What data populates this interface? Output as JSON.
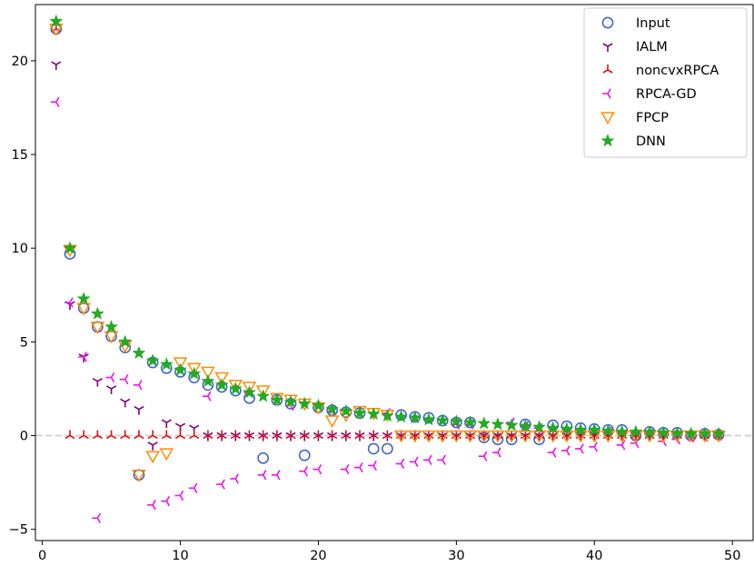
{
  "chart_data": {
    "type": "scatter",
    "title": "",
    "xlabel": "",
    "ylabel": "",
    "xlim": [
      -0.5,
      51.5
    ],
    "ylim": [
      -5.6,
      23
    ],
    "xticks": [
      0,
      10,
      20,
      30,
      40,
      50
    ],
    "xtick_labels": [
      "0",
      "10",
      "20",
      "30",
      "40",
      "50"
    ],
    "yticks": [
      -5,
      0,
      5,
      10,
      15,
      20
    ],
    "ytick_labels": [
      "−5",
      "0",
      "5",
      "10",
      "15",
      "20"
    ],
    "reference_line": {
      "y": 0,
      "style": "dashed",
      "color": "#cccccc"
    },
    "legend_position": "top-right",
    "series": [
      {
        "name": "Input",
        "marker": "open-circle",
        "color": "#3a5fcd",
        "x": [
          1,
          2,
          3,
          4,
          5,
          6,
          7,
          8,
          9,
          10,
          11,
          12,
          13,
          14,
          15,
          16,
          17,
          18,
          19,
          20,
          21,
          22,
          23,
          24,
          25,
          26,
          27,
          28,
          29,
          30,
          31,
          32,
          33,
          34,
          35,
          36,
          37,
          38,
          39,
          40,
          41,
          42,
          43,
          44,
          45,
          46,
          47,
          48,
          49
        ],
        "y": [
          21.7,
          9.7,
          6.8,
          5.8,
          5.3,
          4.7,
          -2.1,
          3.9,
          3.6,
          3.4,
          3.1,
          2.7,
          2.6,
          2.4,
          2.0,
          -1.2,
          1.9,
          1.7,
          -1.05,
          1.5,
          1.35,
          1.25,
          1.2,
          -0.7,
          -0.7,
          1.1,
          1.0,
          0.95,
          0.8,
          0.7,
          0.7,
          -0.1,
          -0.2,
          -0.2,
          0.6,
          -0.2,
          0.55,
          0.5,
          0.4,
          0.35,
          0.3,
          0.3,
          0.0,
          0.2,
          0.15,
          0.15,
          0.0,
          0.1,
          0.05
        ]
      },
      {
        "name": "IALM",
        "marker": "tri-down",
        "color": "#800080",
        "x": [
          1,
          2,
          3,
          4,
          5,
          6,
          7,
          8,
          9,
          10,
          11,
          12,
          13,
          14,
          15,
          16,
          17,
          18,
          19,
          20,
          21,
          22,
          23,
          24,
          25,
          26,
          27,
          28,
          29,
          30,
          31,
          32,
          33,
          34,
          35,
          36,
          37,
          38,
          39,
          40,
          41,
          42,
          43,
          44,
          45,
          46,
          47,
          48,
          49
        ],
        "y": [
          19.8,
          7.0,
          4.2,
          2.9,
          2.5,
          1.8,
          1.4,
          -0.5,
          0.7,
          0.5,
          0.4,
          0,
          0,
          0,
          0,
          0,
          0,
          0,
          0,
          0,
          0,
          0,
          0,
          0,
          0,
          0,
          0,
          0,
          0,
          0,
          0,
          0,
          0,
          0,
          0,
          0,
          0,
          0,
          0,
          0,
          0,
          0,
          0,
          0,
          0,
          0,
          0,
          0,
          0
        ]
      },
      {
        "name": "noncvxRPCA",
        "marker": "tri-up",
        "color": "#dd1111",
        "x": [
          1,
          2,
          3,
          4,
          5,
          6,
          7,
          8,
          9,
          10,
          11,
          12,
          13,
          14,
          15,
          16,
          17,
          18,
          19,
          20,
          21,
          22,
          23,
          24,
          25,
          26,
          27,
          28,
          29,
          30,
          31,
          32,
          33,
          34,
          35,
          36,
          37,
          38,
          39,
          40,
          41,
          42,
          43,
          44,
          45,
          46,
          47,
          48,
          49
        ],
        "y": [
          21.7,
          0,
          0,
          0,
          0,
          0,
          0,
          0,
          0,
          0,
          0,
          0,
          0,
          0,
          0,
          0,
          0,
          0,
          0,
          0,
          0,
          0,
          0,
          0,
          0,
          0,
          0,
          0,
          0,
          0,
          0,
          0,
          0,
          0,
          0,
          0,
          0,
          0,
          0,
          0,
          0,
          0,
          0,
          0,
          0,
          0,
          0,
          0,
          0
        ]
      },
      {
        "name": "RPCA-GD",
        "marker": "tri-left",
        "color": "#ee11ee",
        "x": [
          1,
          2,
          3,
          4,
          5,
          6,
          7,
          8,
          9,
          10,
          11,
          12,
          13,
          14,
          15,
          16,
          17,
          18,
          19,
          20,
          21,
          22,
          23,
          24,
          25,
          26,
          27,
          28,
          29,
          30,
          31,
          32,
          33,
          34,
          35,
          36,
          37,
          38,
          39,
          40,
          41,
          42,
          43,
          44,
          45,
          46,
          47,
          48,
          49
        ],
        "y": [
          17.8,
          7.1,
          4.2,
          -4.4,
          3.1,
          3.0,
          2.7,
          -3.7,
          -3.5,
          -3.2,
          -2.8,
          2.1,
          -2.6,
          -2.3,
          2.3,
          -2.1,
          -2.1,
          1.6,
          -1.9,
          -1.8,
          1.3,
          -1.8,
          -1.7,
          -1.6,
          1.2,
          -1.5,
          -1.4,
          -1.3,
          -1.3,
          0.6,
          0.6,
          -1.1,
          -0.9,
          0.7,
          0.5,
          0.4,
          -0.9,
          -0.8,
          -0.7,
          -0.6,
          0.2,
          -0.5,
          -0.4,
          0.1,
          -0.3,
          -0.2,
          -0.1,
          -0.05,
          0.0
        ]
      },
      {
        "name": "FPCP",
        "marker": "open-triangle-down",
        "color": "#ff8c00",
        "x": [
          1,
          2,
          3,
          4,
          5,
          6,
          7,
          8,
          9,
          10,
          11,
          12,
          13,
          14,
          15,
          16,
          17,
          18,
          19,
          20,
          21,
          22,
          23,
          24,
          25,
          26,
          27,
          28,
          29,
          30,
          31,
          32,
          33,
          34,
          35,
          36,
          37,
          38,
          39,
          40,
          41,
          42,
          43,
          44,
          45,
          46,
          47,
          48,
          49
        ],
        "y": [
          21.7,
          9.9,
          6.8,
          5.8,
          5.3,
          4.8,
          -2.1,
          -1.1,
          -0.95,
          3.9,
          3.6,
          3.4,
          3.1,
          2.7,
          2.6,
          2.4,
          2.0,
          1.9,
          1.7,
          1.5,
          0.8,
          1.1,
          1.3,
          1.2,
          1.1,
          0.0,
          0.0,
          0.0,
          0.0,
          0.0,
          0.0,
          0.0,
          0.0,
          0.0,
          0.0,
          0.0,
          0.0,
          0.0,
          0.0,
          0.0,
          0.0,
          0.0,
          0.0,
          0.0,
          0.0,
          0.0,
          0.0,
          0.0,
          0.0
        ]
      },
      {
        "name": "DNN",
        "marker": "star",
        "color": "#22aa22",
        "x": [
          1,
          2,
          3,
          4,
          5,
          6,
          7,
          8,
          9,
          10,
          11,
          12,
          13,
          14,
          15,
          16,
          17,
          18,
          19,
          20,
          21,
          22,
          23,
          24,
          25,
          26,
          27,
          28,
          29,
          30,
          31,
          32,
          33,
          34,
          35,
          36,
          37,
          38,
          39,
          40,
          41,
          42,
          43,
          44,
          45,
          46,
          47,
          48,
          49
        ],
        "y": [
          22.1,
          10.0,
          7.3,
          6.5,
          5.8,
          5.0,
          4.4,
          4.0,
          3.8,
          3.5,
          3.3,
          2.9,
          2.7,
          2.5,
          2.3,
          2.1,
          1.9,
          1.8,
          1.7,
          1.6,
          1.4,
          1.3,
          1.2,
          1.15,
          1.05,
          1.0,
          0.95,
          0.85,
          0.8,
          0.75,
          0.7,
          0.65,
          0.6,
          0.55,
          0.5,
          0.45,
          0.4,
          0.35,
          0.3,
          0.3,
          0.25,
          0.2,
          0.2,
          0.18,
          0.15,
          0.12,
          0.1,
          0.1,
          0.1
        ]
      }
    ]
  }
}
